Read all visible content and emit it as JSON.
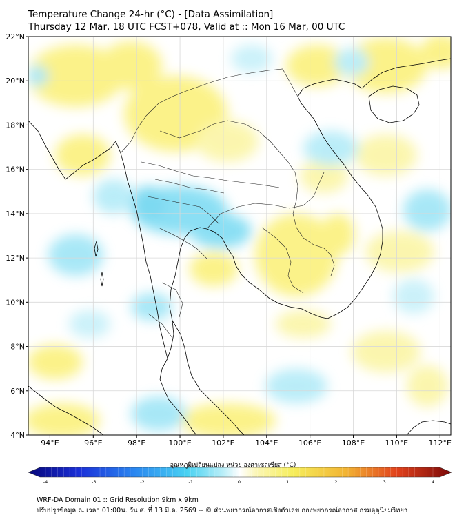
{
  "title": {
    "line1": "Temperature Change 24-hr (°C) - [Data Assimilation]",
    "line2": "Thursday 12 Mar, 18 UTC FCST+078, Valid at :: Mon 16 Mar, 00 UTC"
  },
  "map": {
    "lat_range": [
      4,
      22
    ],
    "lon_range": [
      93,
      112.5
    ],
    "lat_ticks": [
      "4°N",
      "6°N",
      "8°N",
      "10°N",
      "12°N",
      "14°N",
      "16°N",
      "18°N",
      "20°N",
      "22°N"
    ],
    "lon_ticks": [
      "94°E",
      "96°E",
      "98°E",
      "100°E",
      "102°E",
      "104°E",
      "106°E",
      "108°E",
      "110°E",
      "112°E"
    ],
    "grid": true,
    "colors": {
      "cold": "#7fdcf3",
      "warm": "#fbf17d",
      "coast": "#000000",
      "grid": "#d8d8d8"
    }
  },
  "colorbar": {
    "title": "อุณหภูมิเปลี่ยนแปลง หน่วย องศาเซลเซียส (°C)",
    "ticks": [
      "-4",
      "-3",
      "-2",
      "-1",
      "0",
      "1",
      "2",
      "3",
      "4"
    ],
    "range": [
      -4,
      4
    ]
  },
  "footer": {
    "line1": "WRF-DA Domain 01 :: Grid Resolution 9km x 9km",
    "line2": "ปรับปรุงข้อมูล ณ เวลา 01:00น. วัน ศ. ที่ 13 มี.ค. 2569 -- © ส่วนพยากรณ์อากาศเชิงตัวเลข กองพยากรณ์อากาศ กรมอุตุนิยมวิทยา"
  }
}
